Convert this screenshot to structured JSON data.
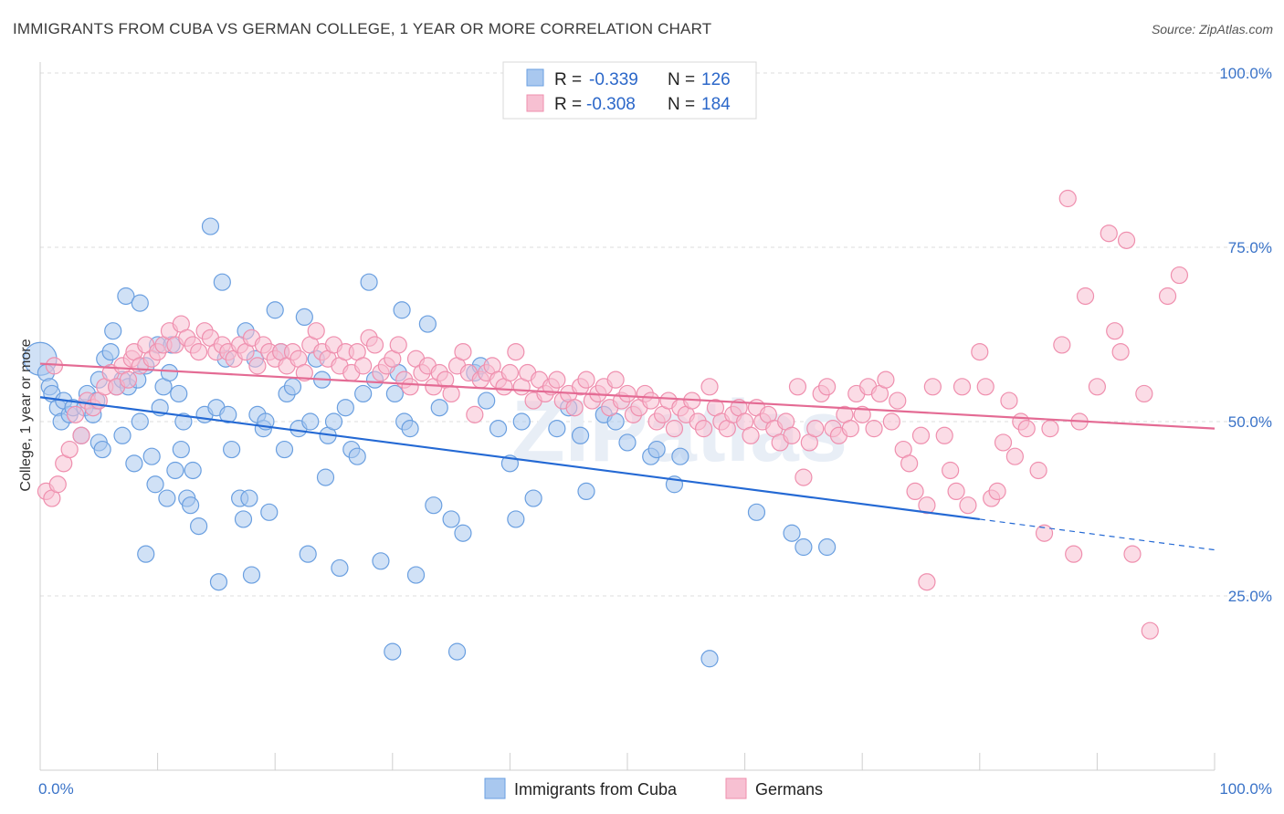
{
  "title": "IMMIGRANTS FROM CUBA VS GERMAN COLLEGE, 1 YEAR OR MORE CORRELATION CHART",
  "source": "Source: ZipAtlas.com",
  "watermark": "ZIPatlas",
  "chart_data": {
    "type": "scatter",
    "ylabel": "College, 1 year or more",
    "xlim": [
      0,
      100
    ],
    "ylim": [
      0,
      100
    ],
    "x_tick_labels": [
      {
        "value": 0,
        "label": "0.0%"
      },
      {
        "value": 100,
        "label": "100.0%"
      }
    ],
    "y_tick_labels": [
      {
        "value": 25,
        "label": "25.0%"
      },
      {
        "value": 50,
        "label": "50.0%"
      },
      {
        "value": 75,
        "label": "75.0%"
      },
      {
        "value": 100,
        "label": "100.0%"
      }
    ],
    "grid": true,
    "legend_position": "top-center",
    "legend": [
      {
        "r_label": "R =",
        "r_value": "-0.339",
        "n_label": "N =",
        "n_value": "126"
      },
      {
        "r_label": "R =",
        "r_value": "-0.308",
        "n_label": "N =",
        "n_value": "184"
      }
    ],
    "series": [
      {
        "name": "Immigrants from Cuba",
        "color": "#6a9fe0",
        "fill": "#a9c8ef",
        "trend": {
          "x0": 0,
          "y0": 53.5,
          "x1": 80,
          "y1": 36.0,
          "dash_to_x": 100,
          "dash_to_y": 31.6,
          "color": "#2469d4"
        },
        "points": [
          [
            0,
            59
          ],
          [
            0.5,
            57
          ],
          [
            0.8,
            55
          ],
          [
            1,
            54
          ],
          [
            1.5,
            52
          ],
          [
            1.8,
            50
          ],
          [
            2,
            53
          ],
          [
            2.5,
            51
          ],
          [
            2.8,
            52
          ],
          [
            3.5,
            48
          ],
          [
            3.8,
            52
          ],
          [
            4,
            54
          ],
          [
            4.5,
            51
          ],
          [
            4.8,
            53
          ],
          [
            5,
            47
          ],
          [
            5,
            56
          ],
          [
            5.3,
            46
          ],
          [
            5.5,
            59
          ],
          [
            6,
            60
          ],
          [
            6.2,
            63
          ],
          [
            6.5,
            55
          ],
          [
            7,
            56
          ],
          [
            7,
            48
          ],
          [
            7.3,
            68
          ],
          [
            7.5,
            55
          ],
          [
            8,
            44
          ],
          [
            8.3,
            56
          ],
          [
            8.5,
            50
          ],
          [
            8.5,
            67
          ],
          [
            9,
            58
          ],
          [
            9,
            31
          ],
          [
            9.5,
            45
          ],
          [
            9.8,
            41
          ],
          [
            10,
            61
          ],
          [
            10.2,
            52
          ],
          [
            10.5,
            55
          ],
          [
            10.8,
            39
          ],
          [
            11,
            57
          ],
          [
            11.2,
            61
          ],
          [
            11.5,
            43
          ],
          [
            11.8,
            54
          ],
          [
            12,
            46
          ],
          [
            12.2,
            50
          ],
          [
            12.5,
            39
          ],
          [
            12.8,
            38
          ],
          [
            13,
            43
          ],
          [
            13.5,
            35
          ],
          [
            14,
            51
          ],
          [
            14.5,
            78
          ],
          [
            15,
            52
          ],
          [
            15.2,
            27
          ],
          [
            15.5,
            70
          ],
          [
            15.8,
            59
          ],
          [
            16,
            51
          ],
          [
            16.3,
            46
          ],
          [
            17,
            39
          ],
          [
            17.3,
            36
          ],
          [
            17.5,
            63
          ],
          [
            17.8,
            39
          ],
          [
            18,
            28
          ],
          [
            18.3,
            59
          ],
          [
            18.5,
            51
          ],
          [
            19,
            49
          ],
          [
            19.2,
            50
          ],
          [
            19.5,
            37
          ],
          [
            20,
            66
          ],
          [
            20.5,
            60
          ],
          [
            20.8,
            46
          ],
          [
            21,
            54
          ],
          [
            21.5,
            55
          ],
          [
            22,
            49
          ],
          [
            22.5,
            65
          ],
          [
            22.8,
            31
          ],
          [
            23,
            50
          ],
          [
            23.5,
            59
          ],
          [
            24,
            56
          ],
          [
            24.3,
            42
          ],
          [
            24.5,
            48
          ],
          [
            25,
            50
          ],
          [
            25.5,
            29
          ],
          [
            26,
            52
          ],
          [
            26.5,
            46
          ],
          [
            27,
            45
          ],
          [
            27.5,
            54
          ],
          [
            28,
            70
          ],
          [
            28.5,
            56
          ],
          [
            29,
            30
          ],
          [
            30,
            17
          ],
          [
            30.2,
            54
          ],
          [
            30.5,
            57
          ],
          [
            30.8,
            66
          ],
          [
            31,
            50
          ],
          [
            31.5,
            49
          ],
          [
            32,
            28
          ],
          [
            33,
            64
          ],
          [
            33.5,
            38
          ],
          [
            34,
            52
          ],
          [
            35,
            36
          ],
          [
            35.5,
            17
          ],
          [
            36,
            34
          ],
          [
            37,
            57
          ],
          [
            37.5,
            58
          ],
          [
            38,
            53
          ],
          [
            39,
            49
          ],
          [
            40,
            44
          ],
          [
            40.5,
            36
          ],
          [
            41,
            50
          ],
          [
            42,
            39
          ],
          [
            44,
            49
          ],
          [
            45,
            52
          ],
          [
            46,
            48
          ],
          [
            46.5,
            40
          ],
          [
            48,
            51
          ],
          [
            49,
            50
          ],
          [
            50,
            47
          ],
          [
            52,
            45
          ],
          [
            52.5,
            46
          ],
          [
            54,
            41
          ],
          [
            54.5,
            45
          ],
          [
            57,
            16
          ],
          [
            61,
            37
          ],
          [
            64,
            34
          ],
          [
            65,
            32
          ],
          [
            67,
            32
          ]
        ]
      },
      {
        "name": "Germans",
        "color": "#ef8fae",
        "fill": "#f7c0d2",
        "trend": {
          "x0": 0,
          "y0": 58.3,
          "x1": 100,
          "y1": 49.0,
          "color": "#e46b94"
        },
        "points": [
          [
            0.5,
            40
          ],
          [
            1,
            39
          ],
          [
            1.2,
            58
          ],
          [
            1.5,
            41
          ],
          [
            2,
            44
          ],
          [
            2.5,
            46
          ],
          [
            3,
            51
          ],
          [
            3.5,
            48
          ],
          [
            4,
            53
          ],
          [
            4.5,
            52
          ],
          [
            5,
            53
          ],
          [
            5.5,
            55
          ],
          [
            6,
            57
          ],
          [
            6.5,
            55
          ],
          [
            7,
            58
          ],
          [
            7.5,
            56
          ],
          [
            7.8,
            59
          ],
          [
            8,
            60
          ],
          [
            8.5,
            58
          ],
          [
            9,
            61
          ],
          [
            9.5,
            59
          ],
          [
            10,
            60
          ],
          [
            10.5,
            61
          ],
          [
            11,
            63
          ],
          [
            11.5,
            61
          ],
          [
            12,
            64
          ],
          [
            12.5,
            62
          ],
          [
            13,
            61
          ],
          [
            13.5,
            60
          ],
          [
            14,
            63
          ],
          [
            14.5,
            62
          ],
          [
            15,
            60
          ],
          [
            15.5,
            61
          ],
          [
            16,
            60
          ],
          [
            16.5,
            59
          ],
          [
            17,
            61
          ],
          [
            17.5,
            60
          ],
          [
            18,
            62
          ],
          [
            18.5,
            58
          ],
          [
            19,
            61
          ],
          [
            19.5,
            60
          ],
          [
            20,
            59
          ],
          [
            20.5,
            60
          ],
          [
            21,
            58
          ],
          [
            21.5,
            60
          ],
          [
            22,
            59
          ],
          [
            22.5,
            57
          ],
          [
            23,
            61
          ],
          [
            23.5,
            63
          ],
          [
            24,
            60
          ],
          [
            24.5,
            59
          ],
          [
            25,
            61
          ],
          [
            25.5,
            58
          ],
          [
            26,
            60
          ],
          [
            26.5,
            57
          ],
          [
            27,
            60
          ],
          [
            27.5,
            58
          ],
          [
            28,
            62
          ],
          [
            28.5,
            61
          ],
          [
            29,
            57
          ],
          [
            29.5,
            58
          ],
          [
            30,
            59
          ],
          [
            30.5,
            61
          ],
          [
            31,
            56
          ],
          [
            31.5,
            55
          ],
          [
            32,
            59
          ],
          [
            32.5,
            57
          ],
          [
            33,
            58
          ],
          [
            33.5,
            55
          ],
          [
            34,
            57
          ],
          [
            34.5,
            56
          ],
          [
            35,
            54
          ],
          [
            35.5,
            58
          ],
          [
            36,
            60
          ],
          [
            36.5,
            57
          ],
          [
            37,
            51
          ],
          [
            37.5,
            56
          ],
          [
            38,
            57
          ],
          [
            38.5,
            58
          ],
          [
            39,
            56
          ],
          [
            39.5,
            55
          ],
          [
            40,
            57
          ],
          [
            40.5,
            60
          ],
          [
            41,
            55
          ],
          [
            41.5,
            57
          ],
          [
            42,
            53
          ],
          [
            42.5,
            56
          ],
          [
            43,
            54
          ],
          [
            43.5,
            55
          ],
          [
            44,
            56
          ],
          [
            44.5,
            53
          ],
          [
            45,
            54
          ],
          [
            45.5,
            52
          ],
          [
            46,
            55
          ],
          [
            46.5,
            56
          ],
          [
            47,
            53
          ],
          [
            47.5,
            54
          ],
          [
            48,
            55
          ],
          [
            48.5,
            52
          ],
          [
            49,
            56
          ],
          [
            49.5,
            53
          ],
          [
            50,
            54
          ],
          [
            50.5,
            51
          ],
          [
            51,
            52
          ],
          [
            51.5,
            54
          ],
          [
            52,
            53
          ],
          [
            52.5,
            50
          ],
          [
            53,
            51
          ],
          [
            53.5,
            53
          ],
          [
            54,
            49
          ],
          [
            54.5,
            52
          ],
          [
            55,
            51
          ],
          [
            55.5,
            53
          ],
          [
            56,
            50
          ],
          [
            56.5,
            49
          ],
          [
            57,
            55
          ],
          [
            57.5,
            52
          ],
          [
            58,
            50
          ],
          [
            58.5,
            49
          ],
          [
            59,
            51
          ],
          [
            59.5,
            52
          ],
          [
            60,
            50
          ],
          [
            60.5,
            48
          ],
          [
            61,
            52
          ],
          [
            61.5,
            50
          ],
          [
            62,
            51
          ],
          [
            62.5,
            49
          ],
          [
            63,
            47
          ],
          [
            63.5,
            50
          ],
          [
            64,
            48
          ],
          [
            64.5,
            55
          ],
          [
            65,
            42
          ],
          [
            65.5,
            47
          ],
          [
            66,
            49
          ],
          [
            66.5,
            54
          ],
          [
            67,
            55
          ],
          [
            67.5,
            49
          ],
          [
            68,
            48
          ],
          [
            68.5,
            51
          ],
          [
            69,
            49
          ],
          [
            69.5,
            54
          ],
          [
            70,
            51
          ],
          [
            70.5,
            55
          ],
          [
            71,
            49
          ],
          [
            71.5,
            54
          ],
          [
            72,
            56
          ],
          [
            72.5,
            50
          ],
          [
            73,
            53
          ],
          [
            73.5,
            46
          ],
          [
            74,
            44
          ],
          [
            74.5,
            40
          ],
          [
            75,
            48
          ],
          [
            75.5,
            38
          ],
          [
            76,
            55
          ],
          [
            77,
            48
          ],
          [
            77.5,
            43
          ],
          [
            78,
            40
          ],
          [
            78.5,
            55
          ],
          [
            79,
            38
          ],
          [
            80,
            60
          ],
          [
            80.5,
            55
          ],
          [
            81,
            39
          ],
          [
            81.5,
            40
          ],
          [
            82,
            47
          ],
          [
            82.5,
            53
          ],
          [
            83,
            45
          ],
          [
            83.5,
            50
          ],
          [
            84,
            49
          ],
          [
            85,
            43
          ],
          [
            85.5,
            34
          ],
          [
            86,
            49
          ],
          [
            87,
            61
          ],
          [
            87.5,
            82
          ],
          [
            88,
            31
          ],
          [
            88.5,
            50
          ],
          [
            89,
            68
          ],
          [
            90,
            55
          ],
          [
            91,
            77
          ],
          [
            91.5,
            63
          ],
          [
            92,
            60
          ],
          [
            92.5,
            76
          ],
          [
            93,
            31
          ],
          [
            94,
            54
          ],
          [
            94.5,
            20
          ],
          [
            96,
            68
          ],
          [
            97,
            71
          ],
          [
            75.5,
            27
          ]
        ]
      }
    ]
  }
}
